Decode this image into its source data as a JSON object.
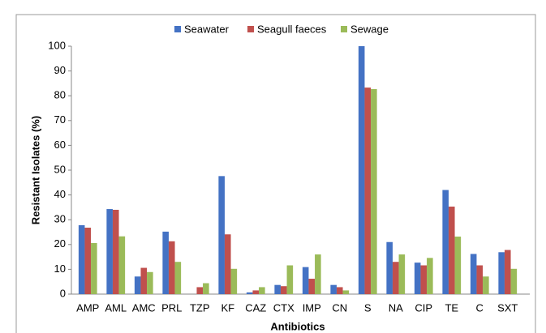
{
  "chart_data": {
    "type": "bar",
    "ylabel": "Resistant Isolates (%)",
    "xlabel": "Antibiotics",
    "categories": [
      "AMP",
      "AML",
      "AMC",
      "PRL",
      "TZP",
      "KF",
      "CAZ",
      "CTX",
      "IMP",
      "CN",
      "S",
      "NA",
      "CIP",
      "TE",
      "C",
      "SXT"
    ],
    "series": [
      {
        "name": "Seawater",
        "color": "#4472c4",
        "values": [
          27.8,
          34.3,
          7.1,
          25.2,
          0,
          47.6,
          0.7,
          3.7,
          10.9,
          3.7,
          100,
          21,
          12.7,
          42,
          16.2,
          16.9
        ]
      },
      {
        "name": "Seagull faeces",
        "color": "#c0504d",
        "values": [
          26.8,
          34,
          10.6,
          21.3,
          2.8,
          24.1,
          1.5,
          3.2,
          6.2,
          2.8,
          83.3,
          13,
          11.6,
          35.3,
          11.6,
          17.8
        ]
      },
      {
        "name": "Sewage",
        "color": "#9bbb59",
        "values": [
          20.6,
          23.3,
          8.9,
          13,
          4.4,
          10.2,
          2.8,
          11.6,
          16,
          1.5,
          82.7,
          16,
          14.6,
          23.2,
          7.1,
          10.2
        ]
      }
    ],
    "ylim": [
      0,
      100
    ],
    "yticks": [
      0,
      10,
      20,
      30,
      40,
      50,
      60,
      70,
      80,
      90,
      100
    ],
    "grid": false,
    "legend": "top"
  }
}
